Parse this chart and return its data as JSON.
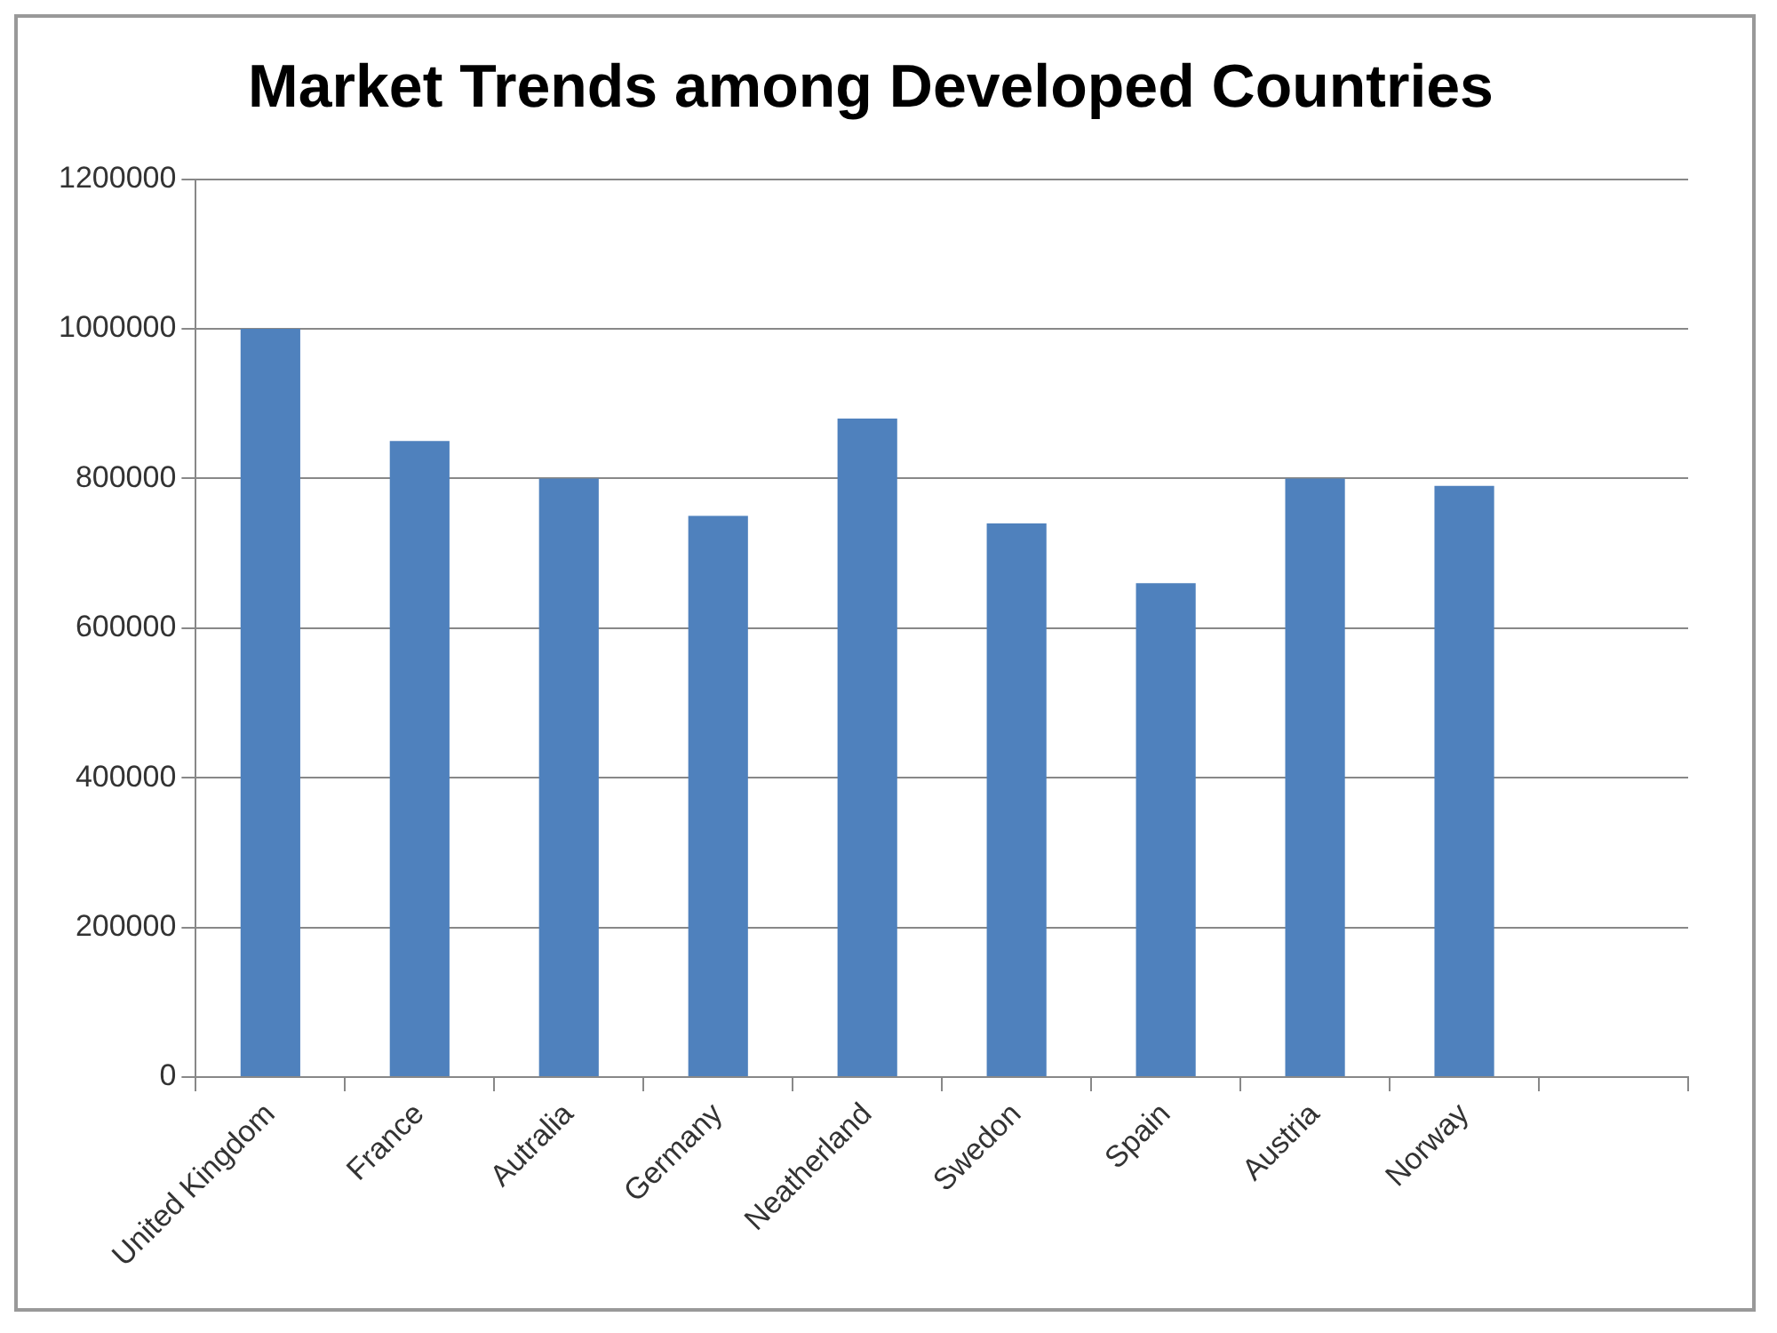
{
  "chart_data": {
    "type": "bar",
    "title": "Market Trends among Developed Countries",
    "categories": [
      "United Kingdom",
      "France",
      "Autralia",
      "Germany",
      "Neatherland",
      "Swedon",
      "Spain",
      "Austria",
      "Norway",
      null
    ],
    "values": [
      1000000,
      850000,
      800000,
      750000,
      880000,
      740000,
      660000,
      800000,
      790000,
      null
    ],
    "color": "#4f81bd",
    "ylim": [
      0,
      1200000
    ],
    "yticks": [
      0,
      200000,
      400000,
      600000,
      800000,
      1000000,
      1200000
    ],
    "grid": "y",
    "legend": false
  }
}
